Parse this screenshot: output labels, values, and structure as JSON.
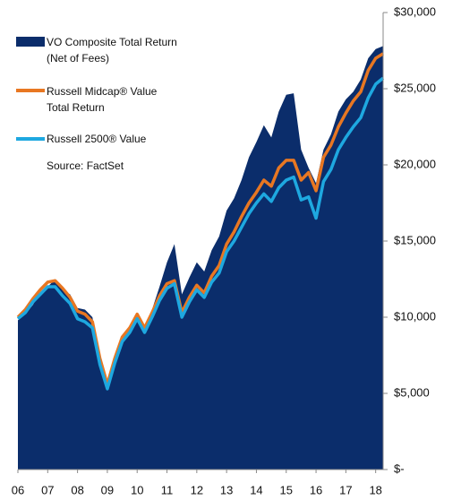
{
  "chart_data": {
    "type": "area-line",
    "x": [
      2006,
      2006.25,
      2006.5,
      2006.75,
      2007,
      2007.25,
      2007.5,
      2007.75,
      2008,
      2008.25,
      2008.5,
      2008.75,
      2009,
      2009.25,
      2009.5,
      2009.75,
      2010,
      2010.25,
      2010.5,
      2010.75,
      2011,
      2011.25,
      2011.5,
      2011.75,
      2012,
      2012.25,
      2012.5,
      2012.75,
      2013,
      2013.25,
      2013.5,
      2013.75,
      2014,
      2014.25,
      2014.5,
      2014.75,
      2015,
      2015.25,
      2015.5,
      2015.75,
      2016,
      2016.25,
      2016.5,
      2016.75,
      2017,
      2017.25,
      2017.5,
      2017.75,
      2018,
      2018.25
    ],
    "series": [
      {
        "name": "VO Composite Total Return\n(Net of Fees)",
        "color": "#0b2d6b",
        "style": "area",
        "values": [
          9800,
          10200,
          10800,
          11600,
          12000,
          12500,
          11800,
          11500,
          10600,
          10500,
          10000,
          7000,
          5400,
          7200,
          8600,
          9300,
          10200,
          9200,
          10500,
          12000,
          13600,
          14800,
          11500,
          12600,
          13600,
          13000,
          14400,
          15300,
          17000,
          17800,
          19000,
          20500,
          21500,
          22600,
          21800,
          23500,
          24600,
          24700,
          21000,
          19800,
          18800,
          21000,
          22000,
          23500,
          24300,
          24800,
          25600,
          27000,
          27600,
          27800
        ]
      },
      {
        "name": "Russell Midcap® Value\nTotal Return",
        "color": "#e87722",
        "style": "line",
        "values": [
          10000,
          10500,
          11200,
          11800,
          12300,
          12400,
          11900,
          11300,
          10400,
          10200,
          9700,
          7300,
          5600,
          7300,
          8700,
          9300,
          10200,
          9300,
          10300,
          11400,
          12200,
          12400,
          10300,
          11300,
          12100,
          11600,
          12700,
          13400,
          14800,
          15600,
          16600,
          17500,
          18200,
          19000,
          18600,
          19800,
          20300,
          20300,
          19000,
          19500,
          18300,
          20500,
          21300,
          22500,
          23400,
          24200,
          24800,
          26200,
          27000,
          27300
        ]
      },
      {
        "name": "Russell 2500® Value",
        "color": "#1ea8e0",
        "style": "line",
        "values": [
          9900,
          10300,
          11000,
          11500,
          12000,
          12000,
          11400,
          10900,
          9900,
          9700,
          9300,
          6900,
          5300,
          7000,
          8400,
          9000,
          9900,
          9000,
          10000,
          11100,
          11900,
          12200,
          10000,
          11000,
          11800,
          11300,
          12300,
          12900,
          14300,
          15000,
          15900,
          16800,
          17500,
          18100,
          17600,
          18500,
          19000,
          19200,
          17700,
          17900,
          16500,
          18900,
          19700,
          21000,
          21800,
          22500,
          23100,
          24400,
          25300,
          25700
        ]
      }
    ],
    "source": "Source:  FactSet",
    "xlim": [
      2006,
      2018.25
    ],
    "xticks": [
      {
        "value": 2006,
        "label": "06"
      },
      {
        "value": 2007,
        "label": "07"
      },
      {
        "value": 2008,
        "label": "08"
      },
      {
        "value": 2009,
        "label": "09"
      },
      {
        "value": 2010,
        "label": "10"
      },
      {
        "value": 2011,
        "label": "11"
      },
      {
        "value": 2012,
        "label": "12"
      },
      {
        "value": 2013,
        "label": "13"
      },
      {
        "value": 2014,
        "label": "14"
      },
      {
        "value": 2015,
        "label": "15"
      },
      {
        "value": 2016,
        "label": "16"
      },
      {
        "value": 2017,
        "label": "17"
      },
      {
        "value": 2018,
        "label": "18"
      }
    ],
    "ylim": [
      0,
      30000
    ],
    "yticks": [
      {
        "value": 0,
        "label": "$-"
      },
      {
        "value": 5000,
        "label": "$5,000"
      },
      {
        "value": 10000,
        "label": "$10,000"
      },
      {
        "value": 15000,
        "label": "$15,000"
      },
      {
        "value": 20000,
        "label": "$20,000"
      },
      {
        "value": 25000,
        "label": "$25,000"
      },
      {
        "value": 30000,
        "label": "$30,000"
      }
    ]
  }
}
